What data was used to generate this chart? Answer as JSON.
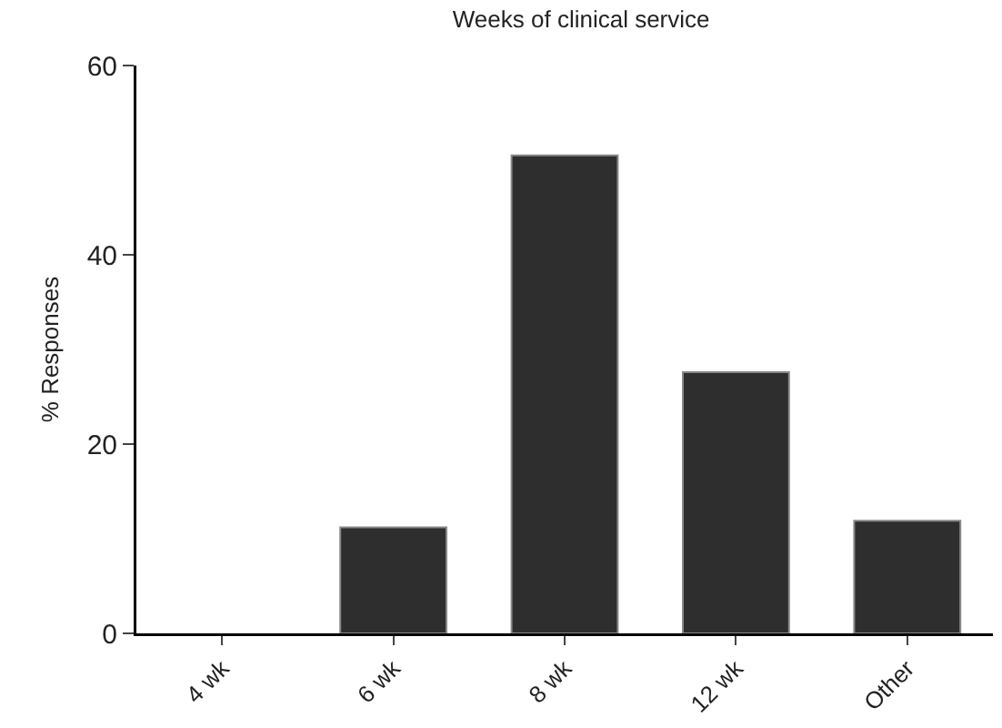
{
  "chart_data": {
    "type": "bar",
    "title": "Weeks of clinical service",
    "ylabel": "% Responses",
    "categories": [
      "4 wk",
      "6 wk",
      "8 wk",
      "12 wk",
      "Other"
    ],
    "values": [
      0,
      11.2,
      50.5,
      27.6,
      11.9
    ],
    "color": "#2e2e2e",
    "ylim": [
      0,
      60
    ],
    "yticks": [
      0,
      20,
      40,
      60
    ],
    "grid": false
  }
}
